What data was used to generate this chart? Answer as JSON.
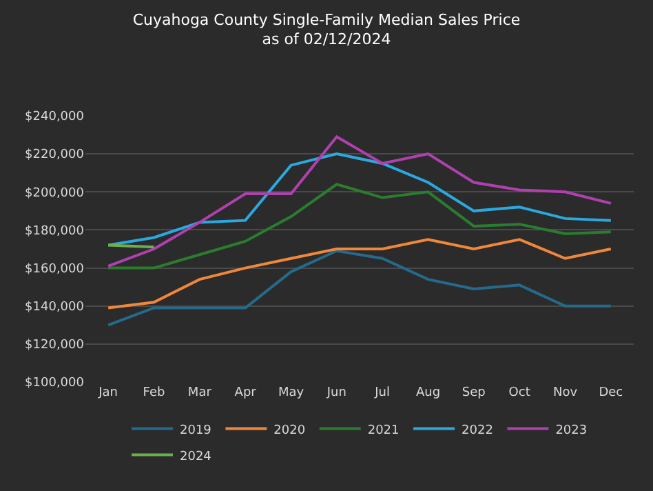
{
  "chart_data": {
    "type": "line",
    "title": "Cuyahoga County Single-Family Median Sales Price\nas of 02/12/2024",
    "categories": [
      "Jan",
      "Feb",
      "Mar",
      "Apr",
      "May",
      "Jun",
      "Jul",
      "Aug",
      "Sep",
      "Oct",
      "Nov",
      "Dec"
    ],
    "series": [
      {
        "name": "2019",
        "color": "#256a8c",
        "values": [
          130000,
          139000,
          139000,
          139000,
          158000,
          169000,
          165000,
          154000,
          149000,
          151000,
          140000,
          140000
        ]
      },
      {
        "name": "2020",
        "color": "#f0873a",
        "values": [
          139000,
          142000,
          154000,
          160000,
          165000,
          170000,
          170000,
          175000,
          170000,
          175000,
          165000,
          170000
        ]
      },
      {
        "name": "2021",
        "color": "#2a7d2e",
        "values": [
          160000,
          160000,
          167000,
          174000,
          187000,
          204000,
          197000,
          200000,
          182000,
          183000,
          178000,
          179000
        ]
      },
      {
        "name": "2022",
        "color": "#2aa9e0",
        "values": [
          172000,
          176000,
          184000,
          185000,
          214000,
          220000,
          215000,
          205000,
          190000,
          192000,
          186000,
          185000
        ]
      },
      {
        "name": "2023",
        "color": "#b040b0",
        "values": [
          161000,
          170000,
          184000,
          199000,
          199000,
          229000,
          215000,
          220000,
          205000,
          201000,
          200000,
          194000
        ]
      },
      {
        "name": "2024",
        "color": "#6ab04c",
        "values": [
          172000,
          171000,
          null,
          null,
          null,
          null,
          null,
          null,
          null,
          null,
          null,
          null
        ]
      }
    ],
    "ylim": [
      100000,
      240000
    ],
    "yticks": [
      {
        "value": 100000,
        "label": "$100,000"
      },
      {
        "value": 120000,
        "label": "$120,000"
      },
      {
        "value": 140000,
        "label": "$140,000"
      },
      {
        "value": 160000,
        "label": "$160,000"
      },
      {
        "value": 180000,
        "label": "$180,000"
      },
      {
        "value": 200000,
        "label": "$200,000"
      },
      {
        "value": 220000,
        "label": "$220,000"
      },
      {
        "value": 240000,
        "label": "$240,000"
      }
    ],
    "grid": "y",
    "legend": "bottom",
    "marker": "none",
    "line_style": "solid"
  }
}
